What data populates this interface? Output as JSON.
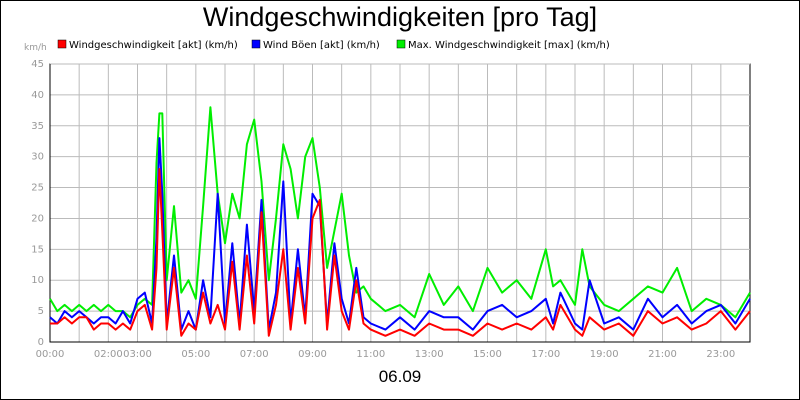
{
  "title": "Windgeschwindigkeiten [pro Tag]",
  "date_label": "06.09",
  "chart_data": {
    "type": "line",
    "title": "Windgeschwindigkeiten [pro Tag]",
    "ylabel": "km/h",
    "xlabel": "06.09",
    "ylim": [
      0,
      45
    ],
    "yticks": [
      0,
      5,
      10,
      15,
      20,
      25,
      30,
      35,
      40,
      45
    ],
    "xlim": [
      0,
      24
    ],
    "xticks": [
      {
        "value": 0,
        "label": "00:00"
      },
      {
        "value": 2,
        "label": "02:00"
      },
      {
        "value": 3,
        "label": "03:00"
      },
      {
        "value": 5,
        "label": "05:00"
      },
      {
        "value": 7,
        "label": "07:00"
      },
      {
        "value": 9,
        "label": "09:00"
      },
      {
        "value": 11,
        "label": "11:00"
      },
      {
        "value": 13,
        "label": "13:00"
      },
      {
        "value": 15,
        "label": "15:00"
      },
      {
        "value": 17,
        "label": "17:00"
      },
      {
        "value": 19,
        "label": "19:00"
      },
      {
        "value": 21,
        "label": "21:00"
      },
      {
        "value": 23,
        "label": "23:00"
      }
    ],
    "grid": true,
    "legend_position": "top",
    "series": [
      {
        "name": "Windgeschwindigkeit [akt] (km/h)",
        "color": "#ff0000",
        "x": [
          0,
          0.25,
          0.5,
          0.75,
          1,
          1.25,
          1.5,
          1.75,
          2,
          2.25,
          2.5,
          2.75,
          3,
          3.25,
          3.5,
          3.65,
          3.75,
          3.85,
          4,
          4.25,
          4.5,
          4.75,
          5,
          5.25,
          5.5,
          5.75,
          6,
          6.25,
          6.5,
          6.75,
          7,
          7.25,
          7.5,
          7.75,
          8,
          8.25,
          8.5,
          8.75,
          9,
          9.25,
          9.5,
          9.75,
          10,
          10.25,
          10.5,
          10.75,
          11,
          11.5,
          12,
          12.5,
          13,
          13.5,
          14,
          14.5,
          15,
          15.5,
          16,
          16.5,
          17,
          17.25,
          17.5,
          18,
          18.25,
          18.5,
          19,
          19.5,
          20,
          20.5,
          21,
          21.5,
          22,
          22.5,
          23,
          23.5,
          24
        ],
        "values": [
          3,
          3,
          4,
          3,
          4,
          4,
          2,
          3,
          3,
          2,
          3,
          2,
          5,
          6,
          2,
          12,
          28,
          18,
          2,
          12,
          1,
          3,
          2,
          8,
          3,
          6,
          2,
          13,
          2,
          14,
          3,
          21,
          1,
          6,
          15,
          2,
          12,
          3,
          20,
          23,
          2,
          14,
          5,
          2,
          10,
          3,
          2,
          1,
          2,
          1,
          3,
          2,
          2,
          1,
          3,
          2,
          3,
          2,
          4,
          2,
          6,
          2,
          1,
          4,
          2,
          3,
          1,
          5,
          3,
          4,
          2,
          3,
          5,
          2,
          5
        ]
      },
      {
        "name": "Wind Böen [akt] (km/h)",
        "color": "#0000ff",
        "x": [
          0,
          0.25,
          0.5,
          0.75,
          1,
          1.25,
          1.5,
          1.75,
          2,
          2.25,
          2.5,
          2.75,
          3,
          3.25,
          3.5,
          3.65,
          3.75,
          3.85,
          4,
          4.25,
          4.5,
          4.75,
          5,
          5.25,
          5.5,
          5.75,
          6,
          6.25,
          6.5,
          6.75,
          7,
          7.25,
          7.5,
          7.75,
          8,
          8.25,
          8.5,
          8.75,
          9,
          9.25,
          9.5,
          9.75,
          10,
          10.25,
          10.5,
          10.75,
          11,
          11.5,
          12,
          12.5,
          13,
          13.5,
          14,
          14.5,
          15,
          15.5,
          16,
          16.5,
          17,
          17.25,
          17.5,
          18,
          18.25,
          18.5,
          19,
          19.5,
          20,
          20.5,
          21,
          21.5,
          22,
          22.5,
          23,
          23.5,
          24
        ],
        "values": [
          4,
          3,
          5,
          4,
          5,
          4,
          3,
          4,
          4,
          3,
          5,
          3,
          7,
          8,
          3,
          17,
          33,
          24,
          3,
          14,
          2,
          5,
          2,
          10,
          4,
          24,
          3,
          16,
          3,
          19,
          5,
          23,
          2,
          8,
          26,
          3,
          15,
          4,
          24,
          22,
          3,
          16,
          7,
          3,
          12,
          4,
          3,
          2,
          4,
          2,
          5,
          4,
          4,
          2,
          5,
          6,
          4,
          5,
          7,
          3,
          8,
          3,
          2,
          10,
          3,
          4,
          2,
          7,
          4,
          6,
          3,
          5,
          6,
          3,
          7
        ]
      },
      {
        "name": "Max. Windgeschwindigkeit [max] (km/h)",
        "color": "#00ee00",
        "x": [
          0,
          0.25,
          0.5,
          0.75,
          1,
          1.25,
          1.5,
          1.75,
          2,
          2.25,
          2.5,
          2.75,
          3,
          3.25,
          3.5,
          3.65,
          3.75,
          3.85,
          4,
          4.25,
          4.5,
          4.75,
          5,
          5.25,
          5.5,
          5.75,
          6,
          6.25,
          6.5,
          6.75,
          7,
          7.25,
          7.5,
          7.75,
          8,
          8.25,
          8.5,
          8.75,
          9,
          9.25,
          9.5,
          9.75,
          10,
          10.25,
          10.5,
          10.75,
          11,
          11.5,
          12,
          12.5,
          13,
          13.5,
          14,
          14.5,
          15,
          15.5,
          16,
          16.5,
          17,
          17.25,
          17.5,
          18,
          18.25,
          18.5,
          19,
          19.5,
          20,
          20.5,
          21,
          21.5,
          22,
          22.5,
          23,
          23.5,
          24
        ],
        "values": [
          7,
          5,
          6,
          5,
          6,
          5,
          6,
          5,
          6,
          5,
          5,
          4,
          6,
          7,
          6,
          29,
          37,
          37,
          10,
          22,
          8,
          10,
          7,
          22,
          38,
          24,
          16,
          24,
          20,
          32,
          36,
          26,
          10,
          20,
          32,
          28,
          20,
          30,
          33,
          25,
          12,
          18,
          24,
          14,
          8,
          9,
          7,
          5,
          6,
          4,
          11,
          6,
          9,
          5,
          12,
          8,
          10,
          7,
          15,
          9,
          10,
          6,
          15,
          9,
          6,
          5,
          7,
          9,
          8,
          12,
          5,
          7,
          6,
          4,
          8
        ]
      }
    ]
  }
}
